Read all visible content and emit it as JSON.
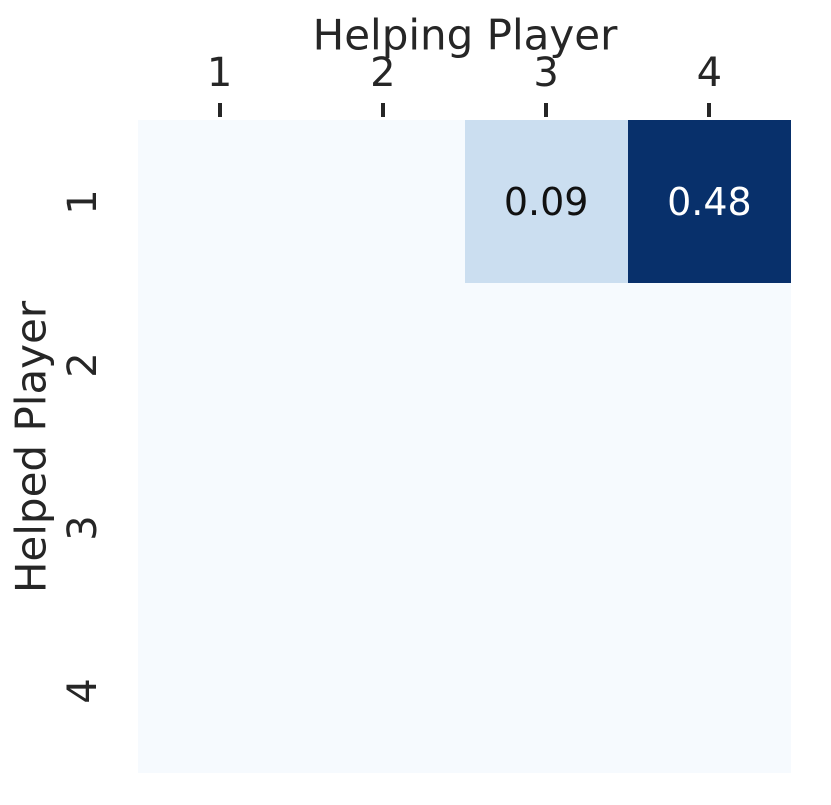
{
  "chart_data": {
    "type": "heatmap",
    "title": "",
    "xlabel": "Helping Player",
    "ylabel": "Helped Player",
    "x_tick_labels": [
      "1",
      "2",
      "3",
      "4"
    ],
    "y_tick_labels": [
      "1",
      "2",
      "3",
      "4"
    ],
    "values": [
      [
        0.0,
        0.0,
        0.09,
        0.48
      ],
      [
        0.0,
        0.0,
        0.0,
        0.0
      ],
      [
        0.0,
        0.0,
        0.0,
        0.0
      ],
      [
        0.0,
        0.0,
        0.0,
        0.0
      ]
    ],
    "annotations": [
      [
        "",
        "",
        "0.09",
        "0.48"
      ],
      [
        "",
        "",
        "",
        ""
      ],
      [
        "",
        "",
        "",
        ""
      ],
      [
        "",
        "",
        "",
        ""
      ]
    ],
    "cell_colors": [
      [
        "#f6fafe",
        "#f6fafe",
        "#cbdef0",
        "#08306b"
      ],
      [
        "#f6fafe",
        "#f6fafe",
        "#f6fafe",
        "#f6fafe"
      ],
      [
        "#f6fafe",
        "#f6fafe",
        "#f6fafe",
        "#f6fafe"
      ],
      [
        "#f6fafe",
        "#f6fafe",
        "#f6fafe",
        "#f6fafe"
      ]
    ],
    "annotation_colors": [
      [
        "",
        "",
        "#111111",
        "#ffffff"
      ],
      [
        "",
        "",
        "",
        ""
      ],
      [
        "",
        "",
        "",
        ""
      ],
      [
        "",
        "",
        "",
        ""
      ]
    ],
    "colormap": "Blues",
    "value_range": [
      0,
      0.48
    ],
    "grid": "off",
    "legend": "none",
    "text_color": "#262626",
    "tick_mark_color": "#262626",
    "background_color": "#ffffff"
  }
}
